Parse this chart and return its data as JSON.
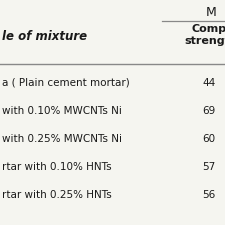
{
  "title_top": "M",
  "col_header_right": "Compr\nstrength",
  "col_header_left": "le of mixture",
  "rows": [
    {
      "label": "a ( Plain cement mortar)",
      "value": "44"
    },
    {
      "label": "with 0.10% MWCNTs Ni",
      "value": "69"
    },
    {
      "label": "with 0.25% MWCNTs Ni",
      "value": "60"
    },
    {
      "label": "rtar with 0.10% HNTs",
      "value": "57"
    },
    {
      "label": "rtar with 0.25% HNTs",
      "value": "56"
    }
  ],
  "bg_color": "#f5f5f0",
  "header_line_color": "#888888",
  "text_color": "#1a1a1a",
  "col_split": 0.72,
  "fig_width": 2.25,
  "fig_height": 2.25,
  "dpi": 100
}
